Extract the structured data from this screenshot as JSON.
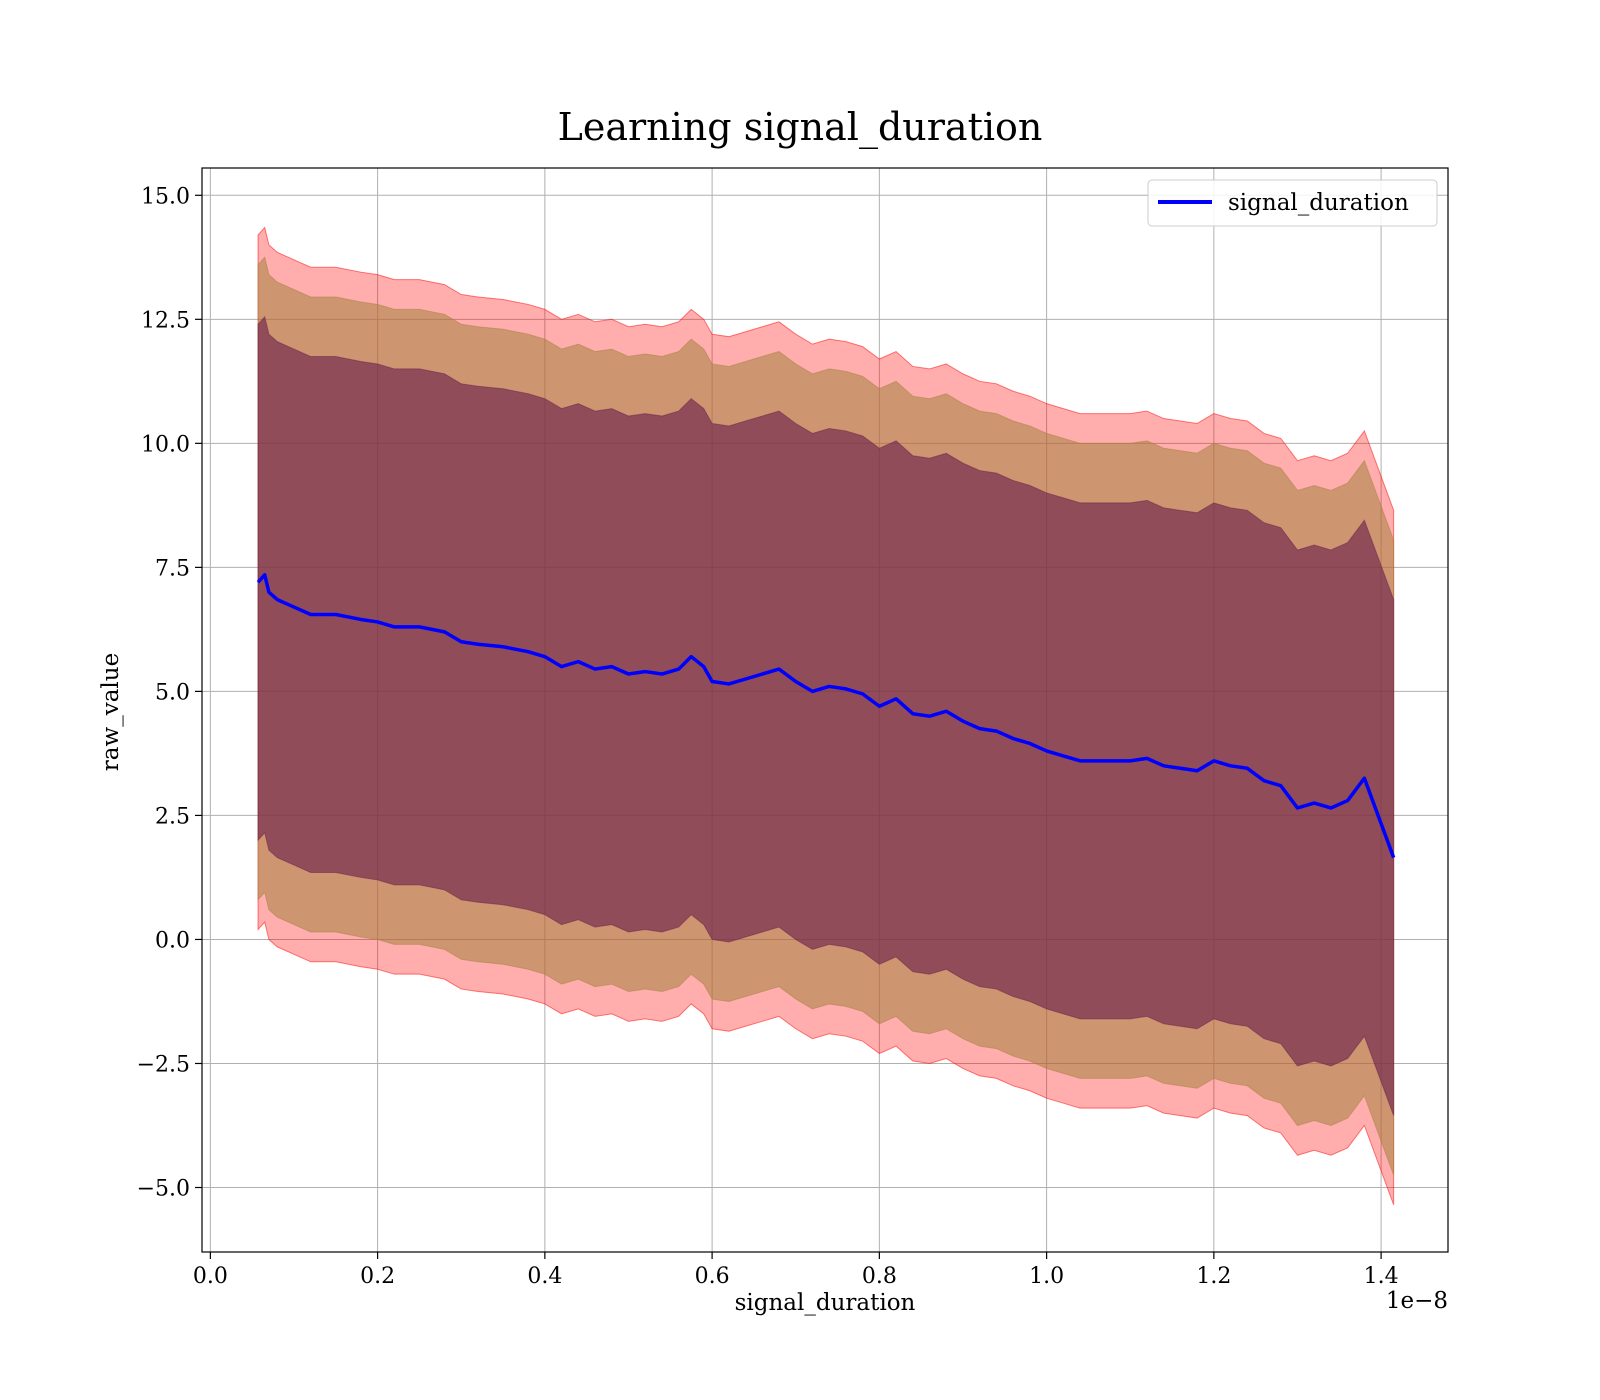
{
  "chart_data": {
    "type": "line",
    "title": "Learning signal_duration",
    "xlabel": "signal_duration",
    "ylabel": "raw_value",
    "x_scale_label": "1e−8",
    "xlim": [
      -0.01,
      1.48
    ],
    "ylim": [
      -6.3,
      15.55
    ],
    "x_ticks": [
      0.0,
      0.2,
      0.4,
      0.6,
      0.8,
      1.0,
      1.2,
      1.4
    ],
    "x_tick_labels": [
      "0.0",
      "0.2",
      "0.4",
      "0.6",
      "0.8",
      "1.0",
      "1.2",
      "1.4"
    ],
    "y_ticks": [
      -5.0,
      -2.5,
      0.0,
      2.5,
      5.0,
      7.5,
      10.0,
      12.5,
      15.0
    ],
    "y_tick_labels": [
      "−5.0",
      "−2.5",
      "0.0",
      "2.5",
      "5.0",
      "7.5",
      "10.0",
      "12.5",
      "15.0"
    ],
    "grid": true,
    "legend_position": "top-right",
    "legend": [
      "signal_duration"
    ],
    "colors": {
      "line": "#0000ff",
      "band_outer": "#ff0000",
      "band_middle": "#a6813f",
      "band_inner": "#6b1f4a",
      "grid": "#b0b0b0"
    },
    "band_widths": {
      "inner": 5.2,
      "middle": 6.4,
      "outer": 7.0
    },
    "series": [
      {
        "name": "signal_duration",
        "x": [
          0.057,
          0.065,
          0.07,
          0.08,
          0.1,
          0.12,
          0.15,
          0.18,
          0.2,
          0.22,
          0.25,
          0.28,
          0.3,
          0.32,
          0.35,
          0.38,
          0.4,
          0.42,
          0.44,
          0.46,
          0.48,
          0.5,
          0.52,
          0.54,
          0.56,
          0.575,
          0.59,
          0.6,
          0.62,
          0.64,
          0.66,
          0.68,
          0.7,
          0.72,
          0.74,
          0.76,
          0.78,
          0.8,
          0.82,
          0.84,
          0.86,
          0.88,
          0.9,
          0.92,
          0.94,
          0.96,
          0.98,
          1.0,
          1.02,
          1.04,
          1.06,
          1.08,
          1.1,
          1.12,
          1.14,
          1.16,
          1.18,
          1.2,
          1.22,
          1.24,
          1.26,
          1.28,
          1.3,
          1.32,
          1.34,
          1.36,
          1.38,
          1.415
        ],
        "y": [
          7.2,
          7.35,
          7.0,
          6.85,
          6.7,
          6.55,
          6.55,
          6.45,
          6.4,
          6.3,
          6.3,
          6.2,
          6.0,
          5.95,
          5.9,
          5.8,
          5.7,
          5.5,
          5.6,
          5.45,
          5.5,
          5.35,
          5.4,
          5.35,
          5.45,
          5.7,
          5.5,
          5.2,
          5.15,
          5.25,
          5.35,
          5.45,
          5.2,
          5.0,
          5.1,
          5.05,
          4.95,
          4.7,
          4.85,
          4.55,
          4.5,
          4.6,
          4.4,
          4.25,
          4.2,
          4.05,
          3.95,
          3.8,
          3.7,
          3.6,
          3.6,
          3.6,
          3.6,
          3.65,
          3.5,
          3.45,
          3.4,
          3.6,
          3.5,
          3.45,
          3.2,
          3.1,
          2.65,
          2.75,
          2.65,
          2.8,
          3.25,
          1.65
        ]
      }
    ]
  }
}
